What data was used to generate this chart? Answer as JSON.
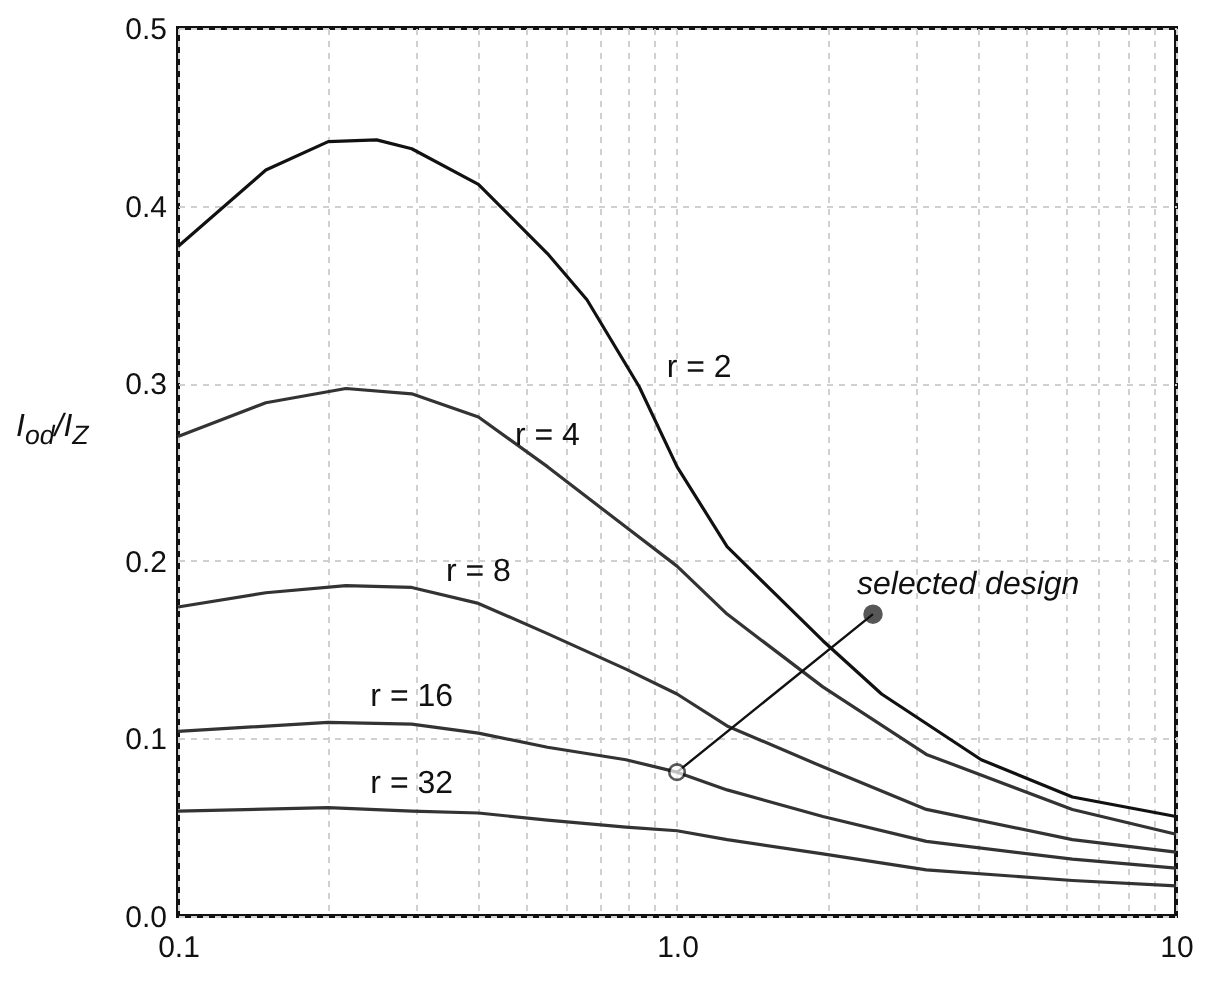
{
  "chart_data": {
    "type": "line",
    "ylabel": "I$_{od}$/I$_{Z}$",
    "xlim": [
      0.1,
      10
    ],
    "ylim": [
      0,
      0.5
    ],
    "log": "x",
    "grid": true,
    "marker": "none",
    "line_style": "solid",
    "xticks": [
      0.1,
      {
        "value": 0.2,
        "label": null
      },
      {
        "value": 0.3,
        "label": null
      },
      {
        "value": 0.4,
        "label": null
      },
      {
        "value": 0.5,
        "label": null
      },
      {
        "value": 0.6,
        "label": null
      },
      {
        "value": 0.7,
        "label": null
      },
      {
        "value": 0.8,
        "label": null
      },
      {
        "value": 0.9,
        "label": null
      },
      {
        "value": 1,
        "label": "1.0"
      },
      {
        "value": 2,
        "label": null
      },
      {
        "value": 3,
        "label": null
      },
      {
        "value": 4,
        "label": null
      },
      {
        "value": 5,
        "label": null
      },
      {
        "value": 6,
        "label": null
      },
      {
        "value": 7,
        "label": null
      },
      {
        "value": 8,
        "label": null
      },
      {
        "value": 9,
        "label": null
      },
      10
    ],
    "yticks": [
      {
        "value": 0,
        "label": "0.0"
      },
      {
        "value": 0.1,
        "label": "0.1"
      },
      {
        "value": 0.2,
        "label": "0.2"
      },
      {
        "value": 0.3,
        "label": "0.3"
      },
      {
        "value": 0.4,
        "label": "0.4"
      },
      {
        "value": 0.5,
        "label": "0.5"
      }
    ],
    "series": [
      {
        "name": "r = 2",
        "color": "#111111",
        "x": [
          0.1,
          0.15,
          0.2,
          0.25,
          0.294,
          0.4,
          0.55,
          0.66,
          0.84,
          1,
          1.26,
          1.96,
          2.57,
          4.07,
          6.2,
          10
        ],
        "values": [
          0.377,
          0.42,
          0.436,
          0.437,
          0.432,
          0.412,
          0.373,
          0.347,
          0.298,
          0.253,
          0.208,
          0.155,
          0.125,
          0.088,
          0.067,
          0.056
        ]
      },
      {
        "name": "r = 4",
        "color": "#333333",
        "x": [
          0.1,
          0.15,
          0.217,
          0.294,
          0.4,
          0.55,
          0.79,
          1,
          1.26,
          1.96,
          3.16,
          6.2,
          10
        ],
        "values": [
          0.27,
          0.289,
          0.297,
          0.294,
          0.281,
          0.253,
          0.219,
          0.197,
          0.17,
          0.129,
          0.091,
          0.06,
          0.046
        ]
      },
      {
        "name": "r = 8",
        "color": "#333333",
        "x": [
          0.1,
          0.15,
          0.217,
          0.294,
          0.4,
          0.55,
          0.79,
          1,
          1.26,
          1.96,
          3.16,
          6.2,
          10
        ],
        "values": [
          0.174,
          0.182,
          0.186,
          0.185,
          0.176,
          0.159,
          0.139,
          0.125,
          0.107,
          0.084,
          0.06,
          0.043,
          0.036
        ]
      },
      {
        "name": "r = 16",
        "color": "#333333",
        "x": [
          0.1,
          0.2,
          0.294,
          0.4,
          0.55,
          0.79,
          1,
          1.26,
          1.96,
          3.16,
          6.2,
          10
        ],
        "values": [
          0.104,
          0.109,
          0.108,
          0.103,
          0.095,
          0.088,
          0.081,
          0.071,
          0.056,
          0.042,
          0.032,
          0.027
        ]
      },
      {
        "name": "r = 32",
        "color": "#333333",
        "x": [
          0.1,
          0.2,
          0.294,
          0.4,
          0.55,
          0.79,
          1,
          1.26,
          1.96,
          3.16,
          6.2,
          10
        ],
        "values": [
          0.059,
          0.061,
          0.059,
          0.058,
          0.054,
          0.05,
          0.048,
          0.043,
          0.035,
          0.026,
          0.02,
          0.017
        ]
      }
    ],
    "annotations": [
      {
        "text": "selected design",
        "x": 1,
        "y": 0.081
      }
    ]
  }
}
